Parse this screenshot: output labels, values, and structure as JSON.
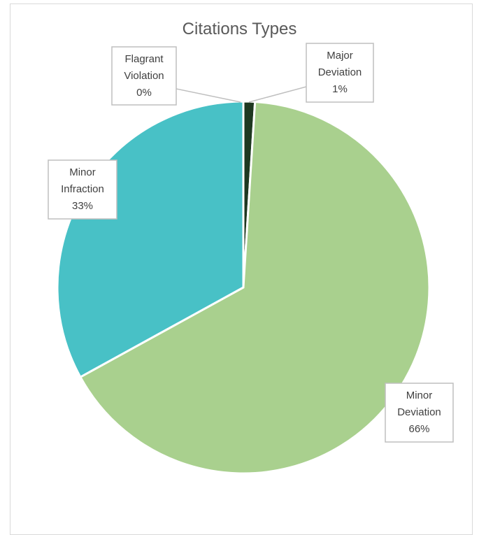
{
  "chart_data": {
    "type": "pie",
    "title": "Citations Types",
    "slices": [
      {
        "name": "Flagrant Violation",
        "value": 0,
        "label_lines": [
          "Flagrant",
          "Violation",
          "0%"
        ],
        "color": "#1f4e9c"
      },
      {
        "name": "Major Deviation",
        "value": 1,
        "label_lines": [
          "Major",
          "Deviation",
          "1%"
        ],
        "color": "#1e3820"
      },
      {
        "name": "Minor Deviation",
        "value": 66,
        "label_lines": [
          "Minor",
          "Deviation",
          "66%"
        ],
        "color": "#a9d08e"
      },
      {
        "name": "Minor Infraction",
        "value": 33,
        "label_lines": [
          "Minor",
          "Infraction",
          "33%"
        ],
        "color": "#48c1c6"
      }
    ],
    "legend": "none"
  }
}
